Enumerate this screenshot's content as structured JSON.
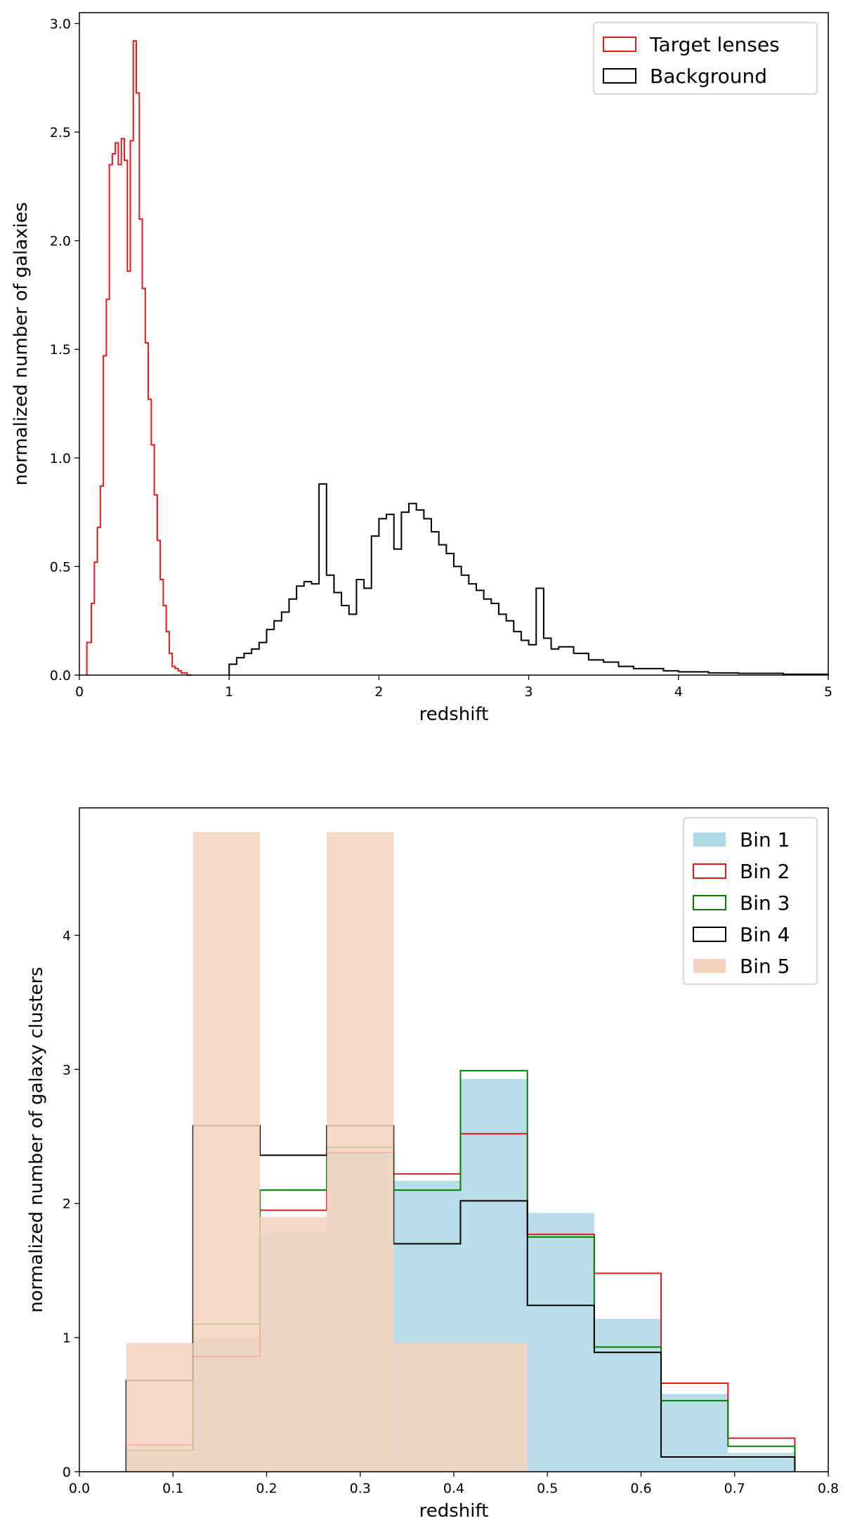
{
  "chart_data": [
    {
      "type": "histogram",
      "xlabel": "redshift",
      "ylabel": "normalized number of galaxies",
      "xlim": [
        0,
        5
      ],
      "ylim": [
        0,
        3.05
      ],
      "xticks": [
        0,
        1,
        2,
        3,
        4,
        5
      ],
      "xtick_labels": [
        "0",
        "1",
        "2",
        "3",
        "4",
        "5"
      ],
      "yticks": [
        0,
        0.5,
        1.0,
        1.5,
        2.0,
        2.5,
        3.0
      ],
      "ytick_labels": [
        "0.0",
        "0.5",
        "1.0",
        "1.5",
        "2.0",
        "2.5",
        "3.0"
      ],
      "legend_position": "top-right",
      "series": [
        {
          "name": "Target lenses",
          "style": "step",
          "color": "#e31a1c",
          "edges": [
            0.05,
            0.08,
            0.1,
            0.12,
            0.14,
            0.16,
            0.18,
            0.2,
            0.22,
            0.24,
            0.26,
            0.28,
            0.3,
            0.32,
            0.34,
            0.36,
            0.38,
            0.4,
            0.42,
            0.44,
            0.46,
            0.48,
            0.5,
            0.52,
            0.54,
            0.56,
            0.58,
            0.6,
            0.62,
            0.64,
            0.66,
            0.68,
            0.7,
            0.72,
            0.75
          ],
          "values": [
            0.15,
            0.33,
            0.52,
            0.68,
            0.87,
            1.47,
            1.73,
            2.35,
            2.4,
            2.45,
            2.35,
            2.47,
            2.37,
            1.86,
            2.46,
            2.92,
            2.68,
            2.1,
            1.78,
            1.53,
            1.27,
            1.06,
            0.83,
            0.62,
            0.44,
            0.32,
            0.2,
            0.1,
            0.04,
            0.03,
            0.02,
            0.01,
            0.01,
            0.0
          ]
        },
        {
          "name": "Background",
          "style": "step",
          "color": "#000000",
          "edges": [
            1.0,
            1.05,
            1.1,
            1.15,
            1.2,
            1.25,
            1.3,
            1.35,
            1.4,
            1.45,
            1.5,
            1.55,
            1.6,
            1.65,
            1.7,
            1.75,
            1.8,
            1.85,
            1.9,
            1.95,
            2.0,
            2.05,
            2.1,
            2.15,
            2.2,
            2.25,
            2.3,
            2.35,
            2.4,
            2.45,
            2.5,
            2.55,
            2.6,
            2.65,
            2.7,
            2.75,
            2.8,
            2.85,
            2.9,
            2.95,
            3.0,
            3.05,
            3.1,
            3.15,
            3.2,
            3.3,
            3.4,
            3.5,
            3.6,
            3.7,
            3.8,
            3.9,
            4.0,
            4.2,
            4.4,
            4.7,
            5.0
          ],
          "values": [
            0.05,
            0.08,
            0.1,
            0.12,
            0.15,
            0.21,
            0.25,
            0.29,
            0.35,
            0.41,
            0.43,
            0.42,
            0.88,
            0.46,
            0.38,
            0.32,
            0.28,
            0.44,
            0.4,
            0.64,
            0.72,
            0.74,
            0.58,
            0.75,
            0.79,
            0.76,
            0.72,
            0.66,
            0.6,
            0.56,
            0.5,
            0.46,
            0.42,
            0.39,
            0.35,
            0.33,
            0.28,
            0.25,
            0.2,
            0.16,
            0.14,
            0.4,
            0.17,
            0.12,
            0.13,
            0.1,
            0.07,
            0.06,
            0.04,
            0.03,
            0.03,
            0.02,
            0.015,
            0.01,
            0.008,
            0.004
          ]
        }
      ]
    },
    {
      "type": "histogram",
      "xlabel": "redshift",
      "ylabel": "normalized number of galaxy clusters",
      "xlim": [
        0,
        0.8
      ],
      "ylim": [
        0,
        4.95
      ],
      "xticks": [
        0,
        0.1,
        0.2,
        0.3,
        0.4,
        0.5,
        0.6,
        0.7,
        0.8
      ],
      "xtick_labels": [
        "0.0",
        "0.1",
        "0.2",
        "0.3",
        "0.4",
        "0.5",
        "0.6",
        "0.7",
        "0.8"
      ],
      "yticks": [
        0,
        1,
        2,
        3,
        4
      ],
      "ytick_labels": [
        "0",
        "1",
        "2",
        "3",
        "4"
      ],
      "legend_position": "top-right",
      "edges": [
        0.05,
        0.1214,
        0.1929,
        0.2643,
        0.3357,
        0.4071,
        0.4786,
        0.55,
        0.6214,
        0.6929,
        0.7643
      ],
      "series": [
        {
          "name": "Bin 1",
          "style": "filled",
          "color": "#add8e6",
          "values": [
            0.15,
            1.0,
            1.78,
            2.38,
            2.17,
            2.93,
            1.93,
            1.14,
            0.58,
            0.14
          ]
        },
        {
          "name": "Bin 2",
          "style": "step",
          "color": "#e31a1c",
          "values": [
            0.2,
            0.86,
            1.95,
            2.38,
            2.22,
            2.52,
            1.77,
            1.48,
            0.66,
            0.25
          ]
        },
        {
          "name": "Bin 3",
          "style": "step",
          "color": "#008000",
          "values": [
            0.16,
            1.1,
            2.1,
            2.42,
            2.1,
            2.99,
            1.75,
            0.93,
            0.53,
            0.19
          ]
        },
        {
          "name": "Bin 4",
          "style": "step",
          "color": "#000000",
          "values": [
            0.68,
            2.58,
            2.36,
            2.58,
            1.7,
            2.02,
            1.24,
            0.89,
            0.11,
            0.11
          ]
        },
        {
          "name": "Bin 5",
          "style": "filled",
          "color": "#f4d3be",
          "values": [
            0.96,
            4.77,
            1.9,
            4.77,
            0.96,
            0.96,
            0.0,
            0.0,
            0.0,
            0.0
          ]
        }
      ]
    }
  ]
}
